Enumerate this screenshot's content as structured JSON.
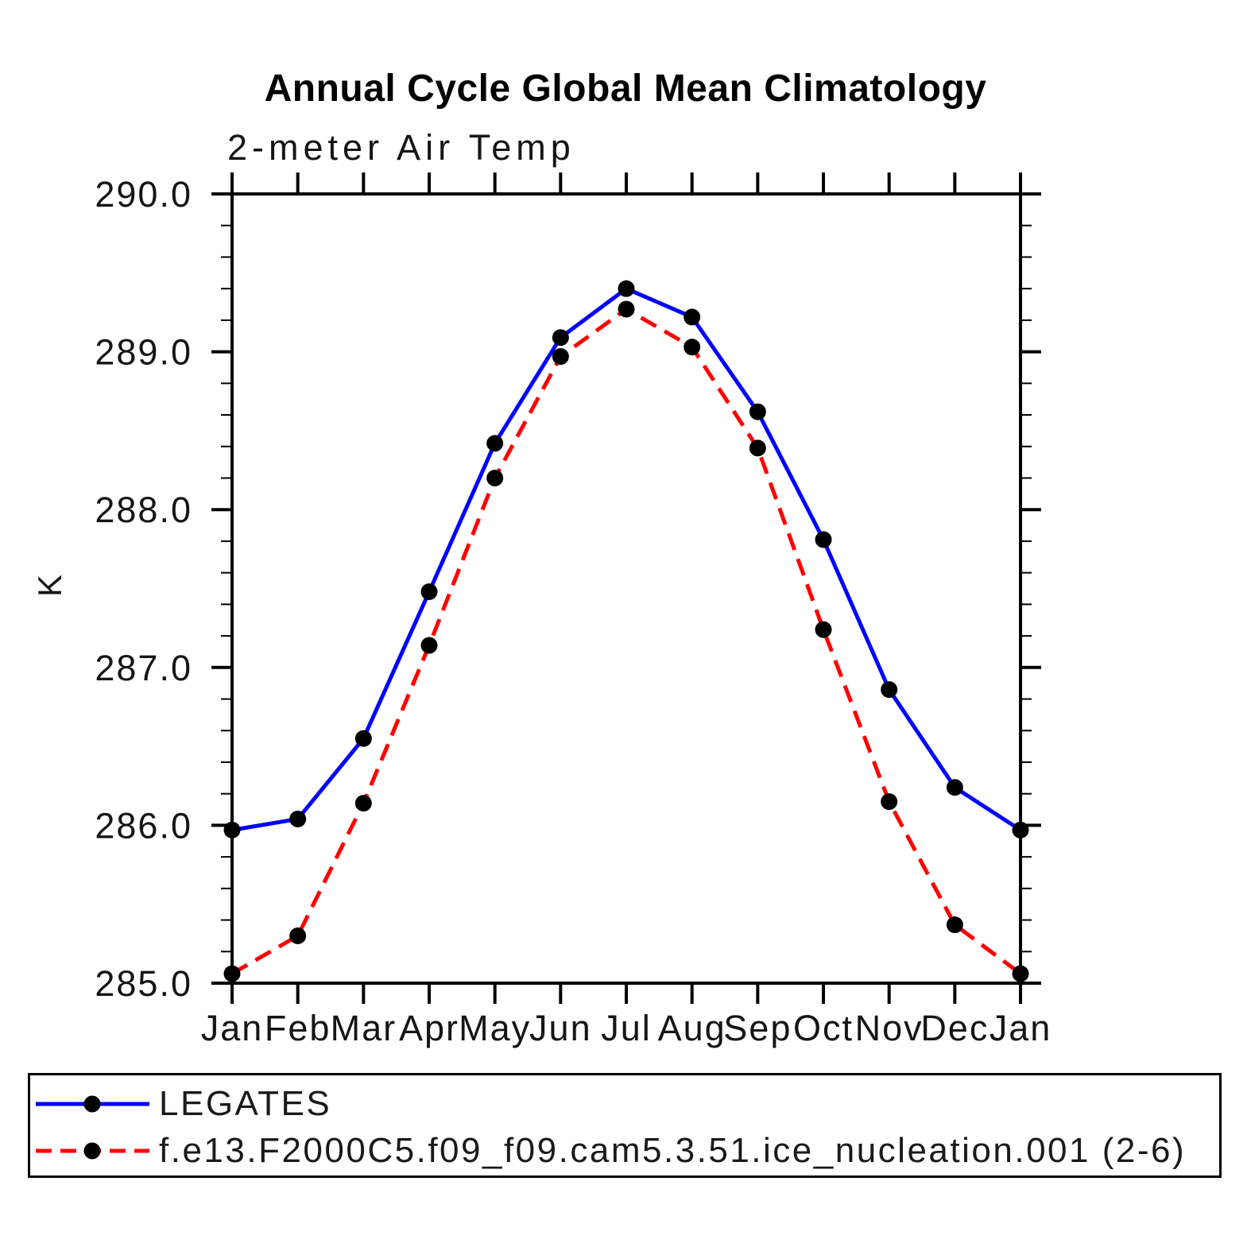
{
  "title": "Annual Cycle Global Mean Climatology",
  "chart_data": {
    "type": "line",
    "title": "Annual Cycle Global Mean Climatology",
    "subtitle": "2-meter Air Temp",
    "xlabel": "",
    "ylabel": "K",
    "ylim": [
      285.0,
      290.0
    ],
    "y_major_step": 1.0,
    "y_minor_step": 0.2,
    "grid": false,
    "y_tick_labels": [
      "290.0",
      "289.0",
      "288.0",
      "287.0",
      "286.0",
      "285.0"
    ],
    "categories": [
      "Jan",
      "Feb",
      "Mar",
      "Apr",
      "May",
      "Jun",
      "Jul",
      "Aug",
      "Sep",
      "Oct",
      "Nov",
      "Dec",
      "Jan"
    ],
    "series": [
      {
        "name": "LEGATES",
        "line_style": "solid",
        "color": "#0000ff",
        "marker": "filled-circle",
        "marker_color": "#000000",
        "values": [
          285.97,
          286.04,
          286.55,
          287.48,
          288.42,
          289.09,
          289.4,
          289.22,
          288.62,
          287.81,
          286.86,
          286.24,
          285.97
        ]
      },
      {
        "name": "f.e13.F2000C5.f09_f09.cam5.3.51.ice_nucleation.001 (2-6)",
        "line_style": "dashed",
        "color": "#ff0000",
        "marker": "filled-circle",
        "marker_color": "#000000",
        "values": [
          285.06,
          285.3,
          286.14,
          287.14,
          288.2,
          288.97,
          289.27,
          289.03,
          288.39,
          287.24,
          286.15,
          285.37,
          285.06
        ]
      }
    ],
    "legend_position": "bottom",
    "axis_color": "#000000",
    "background_color": "#ffffff"
  }
}
